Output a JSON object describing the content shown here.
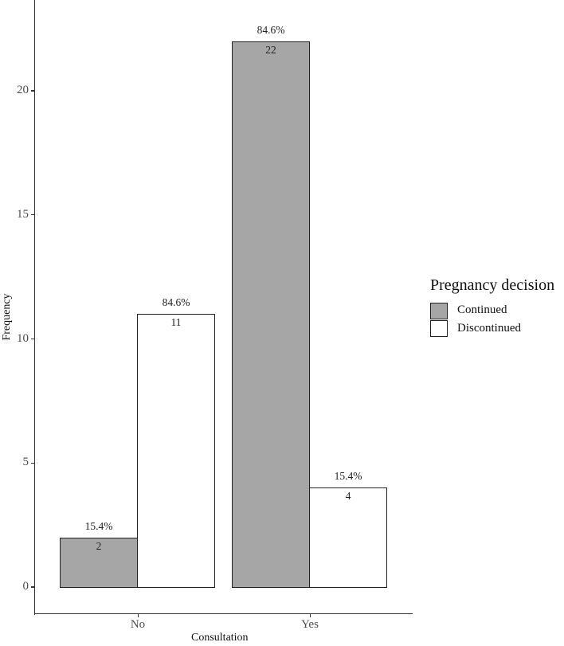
{
  "chart_data": {
    "type": "bar",
    "title": "",
    "xlabel": "Consultation",
    "ylabel": "Frequency",
    "categories": [
      "No",
      "Yes"
    ],
    "series": [
      {
        "name": "Continued",
        "color": "#a6a6a6",
        "values": [
          2,
          22
        ],
        "percent_labels": [
          "15.4%",
          "84.6%"
        ]
      },
      {
        "name": "Discontinued",
        "color": "#ffffff",
        "values": [
          11,
          4
        ],
        "percent_labels": [
          "84.6%",
          "15.4%"
        ]
      }
    ],
    "yticks": [
      "0",
      "5",
      "10",
      "15",
      "20"
    ],
    "ylim": [
      0,
      23
    ],
    "grid": false,
    "legend": {
      "title": "Pregnancy decision",
      "position": "right",
      "entries": [
        "Continued",
        "Discontinued"
      ]
    }
  }
}
